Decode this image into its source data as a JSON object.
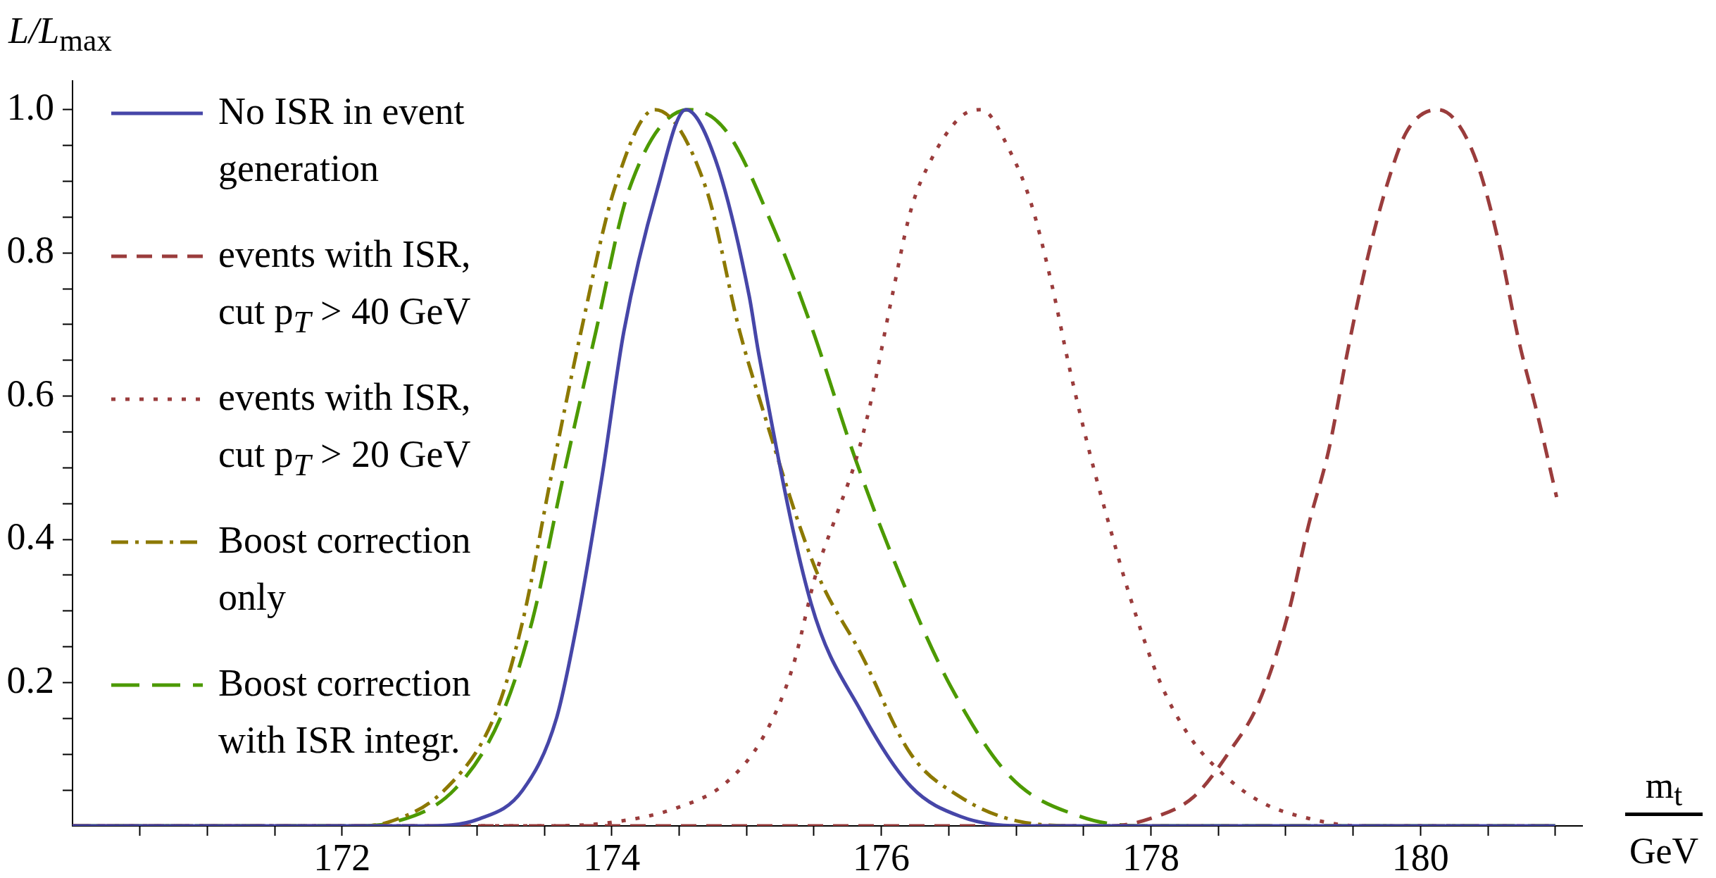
{
  "chart_data": {
    "type": "line",
    "xlabel": "m$_{t}$ GeV",
    "ylabel": "L/L$_{max}$",
    "xlim": [
      170,
      181.2
    ],
    "ylim": [
      0,
      1.04
    ],
    "xticks": [
      {
        "value": 170.5,
        "label": null
      },
      {
        "value": 171,
        "label": null
      },
      {
        "value": 171.5,
        "label": null
      },
      172,
      {
        "value": 172.5,
        "label": null
      },
      {
        "value": 173,
        "label": null
      },
      {
        "value": 173.5,
        "label": null
      },
      174,
      {
        "value": 174.5,
        "label": null
      },
      {
        "value": 175,
        "label": null
      },
      {
        "value": 175.5,
        "label": null
      },
      176,
      {
        "value": 176.5,
        "label": null
      },
      {
        "value": 177,
        "label": null
      },
      {
        "value": 177.5,
        "label": null
      },
      178,
      {
        "value": 178.5,
        "label": null
      },
      {
        "value": 179,
        "label": null
      },
      {
        "value": 179.5,
        "label": null
      },
      180,
      {
        "value": 180.5,
        "label": null
      },
      {
        "value": 181,
        "label": null
      }
    ],
    "yticks": [
      {
        "value": 0.05,
        "label": null
      },
      {
        "value": 0.1,
        "label": null
      },
      {
        "value": 0.15,
        "label": null
      },
      0.2,
      {
        "value": 0.25,
        "label": null
      },
      {
        "value": 0.3,
        "label": null
      },
      {
        "value": 0.35,
        "label": null
      },
      0.4,
      {
        "value": 0.45,
        "label": null
      },
      {
        "value": 0.5,
        "label": null
      },
      {
        "value": 0.55,
        "label": null
      },
      0.6,
      {
        "value": 0.65,
        "label": null
      },
      {
        "value": 0.7,
        "label": null
      },
      {
        "value": 0.75,
        "label": null
      },
      0.8,
      {
        "value": 0.85,
        "label": null
      },
      {
        "value": 0.9,
        "label": null
      },
      {
        "value": 0.95,
        "label": null
      },
      {
        "value": 1,
        "label": "1.0"
      }
    ],
    "legend": "top left",
    "marker": "none",
    "series": [
      {
        "name": "No ISR in event generation",
        "color": "#4646a8",
        "line_style": "solid",
        "x": [
          170,
          172.6,
          173.02,
          173.34,
          173.59,
          173.75,
          173.93,
          174.09,
          174.34,
          174.55,
          174.77,
          175.02,
          175.09,
          175.48,
          175.85,
          176.22,
          176.59,
          177.03,
          181
        ],
        "values": [
          0,
          0,
          0.01,
          0.05,
          0.15,
          0.29,
          0.49,
          0.69,
          0.89,
          1,
          0.93,
          0.74,
          0.66,
          0.31,
          0.16,
          0.055,
          0.013,
          0,
          0
        ]
      },
      {
        "name": "events with ISR, cut p$_{T}$ > 40 GeV",
        "color": "#9a3c3c",
        "line_style": "dashed",
        "x": [
          170,
          177.7,
          177.99,
          178.32,
          178.58,
          178.8,
          179.02,
          179.17,
          179.32,
          179.46,
          179.61,
          179.76,
          179.9,
          180.13,
          180.28,
          180.43,
          180.58,
          180.73,
          180.87,
          181.01
        ],
        "values": [
          0,
          0,
          0.01,
          0.041,
          0.103,
          0.172,
          0.297,
          0.42,
          0.525,
          0.663,
          0.795,
          0.9,
          0.97,
          1,
          0.98,
          0.92,
          0.815,
          0.677,
          0.573,
          0.459
        ]
      },
      {
        "name": "events with ISR, cut p$_{T}$ > 20 GeV",
        "color": "#9a3c3c",
        "line_style": "dotted",
        "x": [
          170,
          173.5,
          174,
          174.48,
          174.84,
          175.13,
          175.34,
          175.52,
          175.66,
          175.81,
          175.92,
          176.07,
          176.22,
          176.37,
          176.59,
          176.74,
          176.96,
          177.11,
          177.26,
          177.4,
          177.55,
          177.7,
          177.85,
          178.07,
          178.29,
          178.52,
          178.81,
          179.18,
          179.55,
          181
        ],
        "values": [
          0,
          0,
          0.005,
          0.025,
          0.059,
          0.126,
          0.22,
          0.355,
          0.43,
          0.51,
          0.59,
          0.73,
          0.86,
          0.93,
          0.99,
          1,
          0.94,
          0.87,
          0.76,
          0.636,
          0.518,
          0.414,
          0.317,
          0.2,
          0.124,
          0.075,
          0.034,
          0.01,
          0,
          0
        ]
      },
      {
        "name": "Boost correction only",
        "color": "#8c7800",
        "line_style": "dashdot",
        "x": [
          170,
          172.1,
          172.34,
          172.77,
          173.13,
          173.34,
          173.55,
          173.77,
          174.02,
          174.32,
          174.7,
          174.95,
          175.09,
          175.52,
          175.85,
          176.22,
          176.59,
          177.03,
          177.5,
          181
        ],
        "values": [
          0,
          0,
          0.005,
          0.052,
          0.153,
          0.286,
          0.487,
          0.688,
          0.889,
          1,
          0.89,
          0.69,
          0.6,
          0.355,
          0.24,
          0.1,
          0.04,
          0.006,
          0,
          0
        ]
      },
      {
        "name": "Boost correction with ISR integr.",
        "color": "#4c9a00",
        "line_style": "longdash",
        "x": [
          170,
          172.1,
          172.38,
          172.84,
          173.18,
          173.41,
          173.64,
          173.88,
          174.13,
          174.57,
          174.85,
          175.2,
          175.48,
          175.81,
          176.15,
          176.52,
          176.96,
          177.48,
          177.96,
          181
        ],
        "values": [
          0,
          0,
          0.005,
          0.052,
          0.153,
          0.286,
          0.487,
          0.688,
          0.889,
          1,
          0.97,
          0.835,
          0.698,
          0.511,
          0.345,
          0.193,
          0.068,
          0.013,
          0,
          0
        ]
      }
    ]
  }
}
